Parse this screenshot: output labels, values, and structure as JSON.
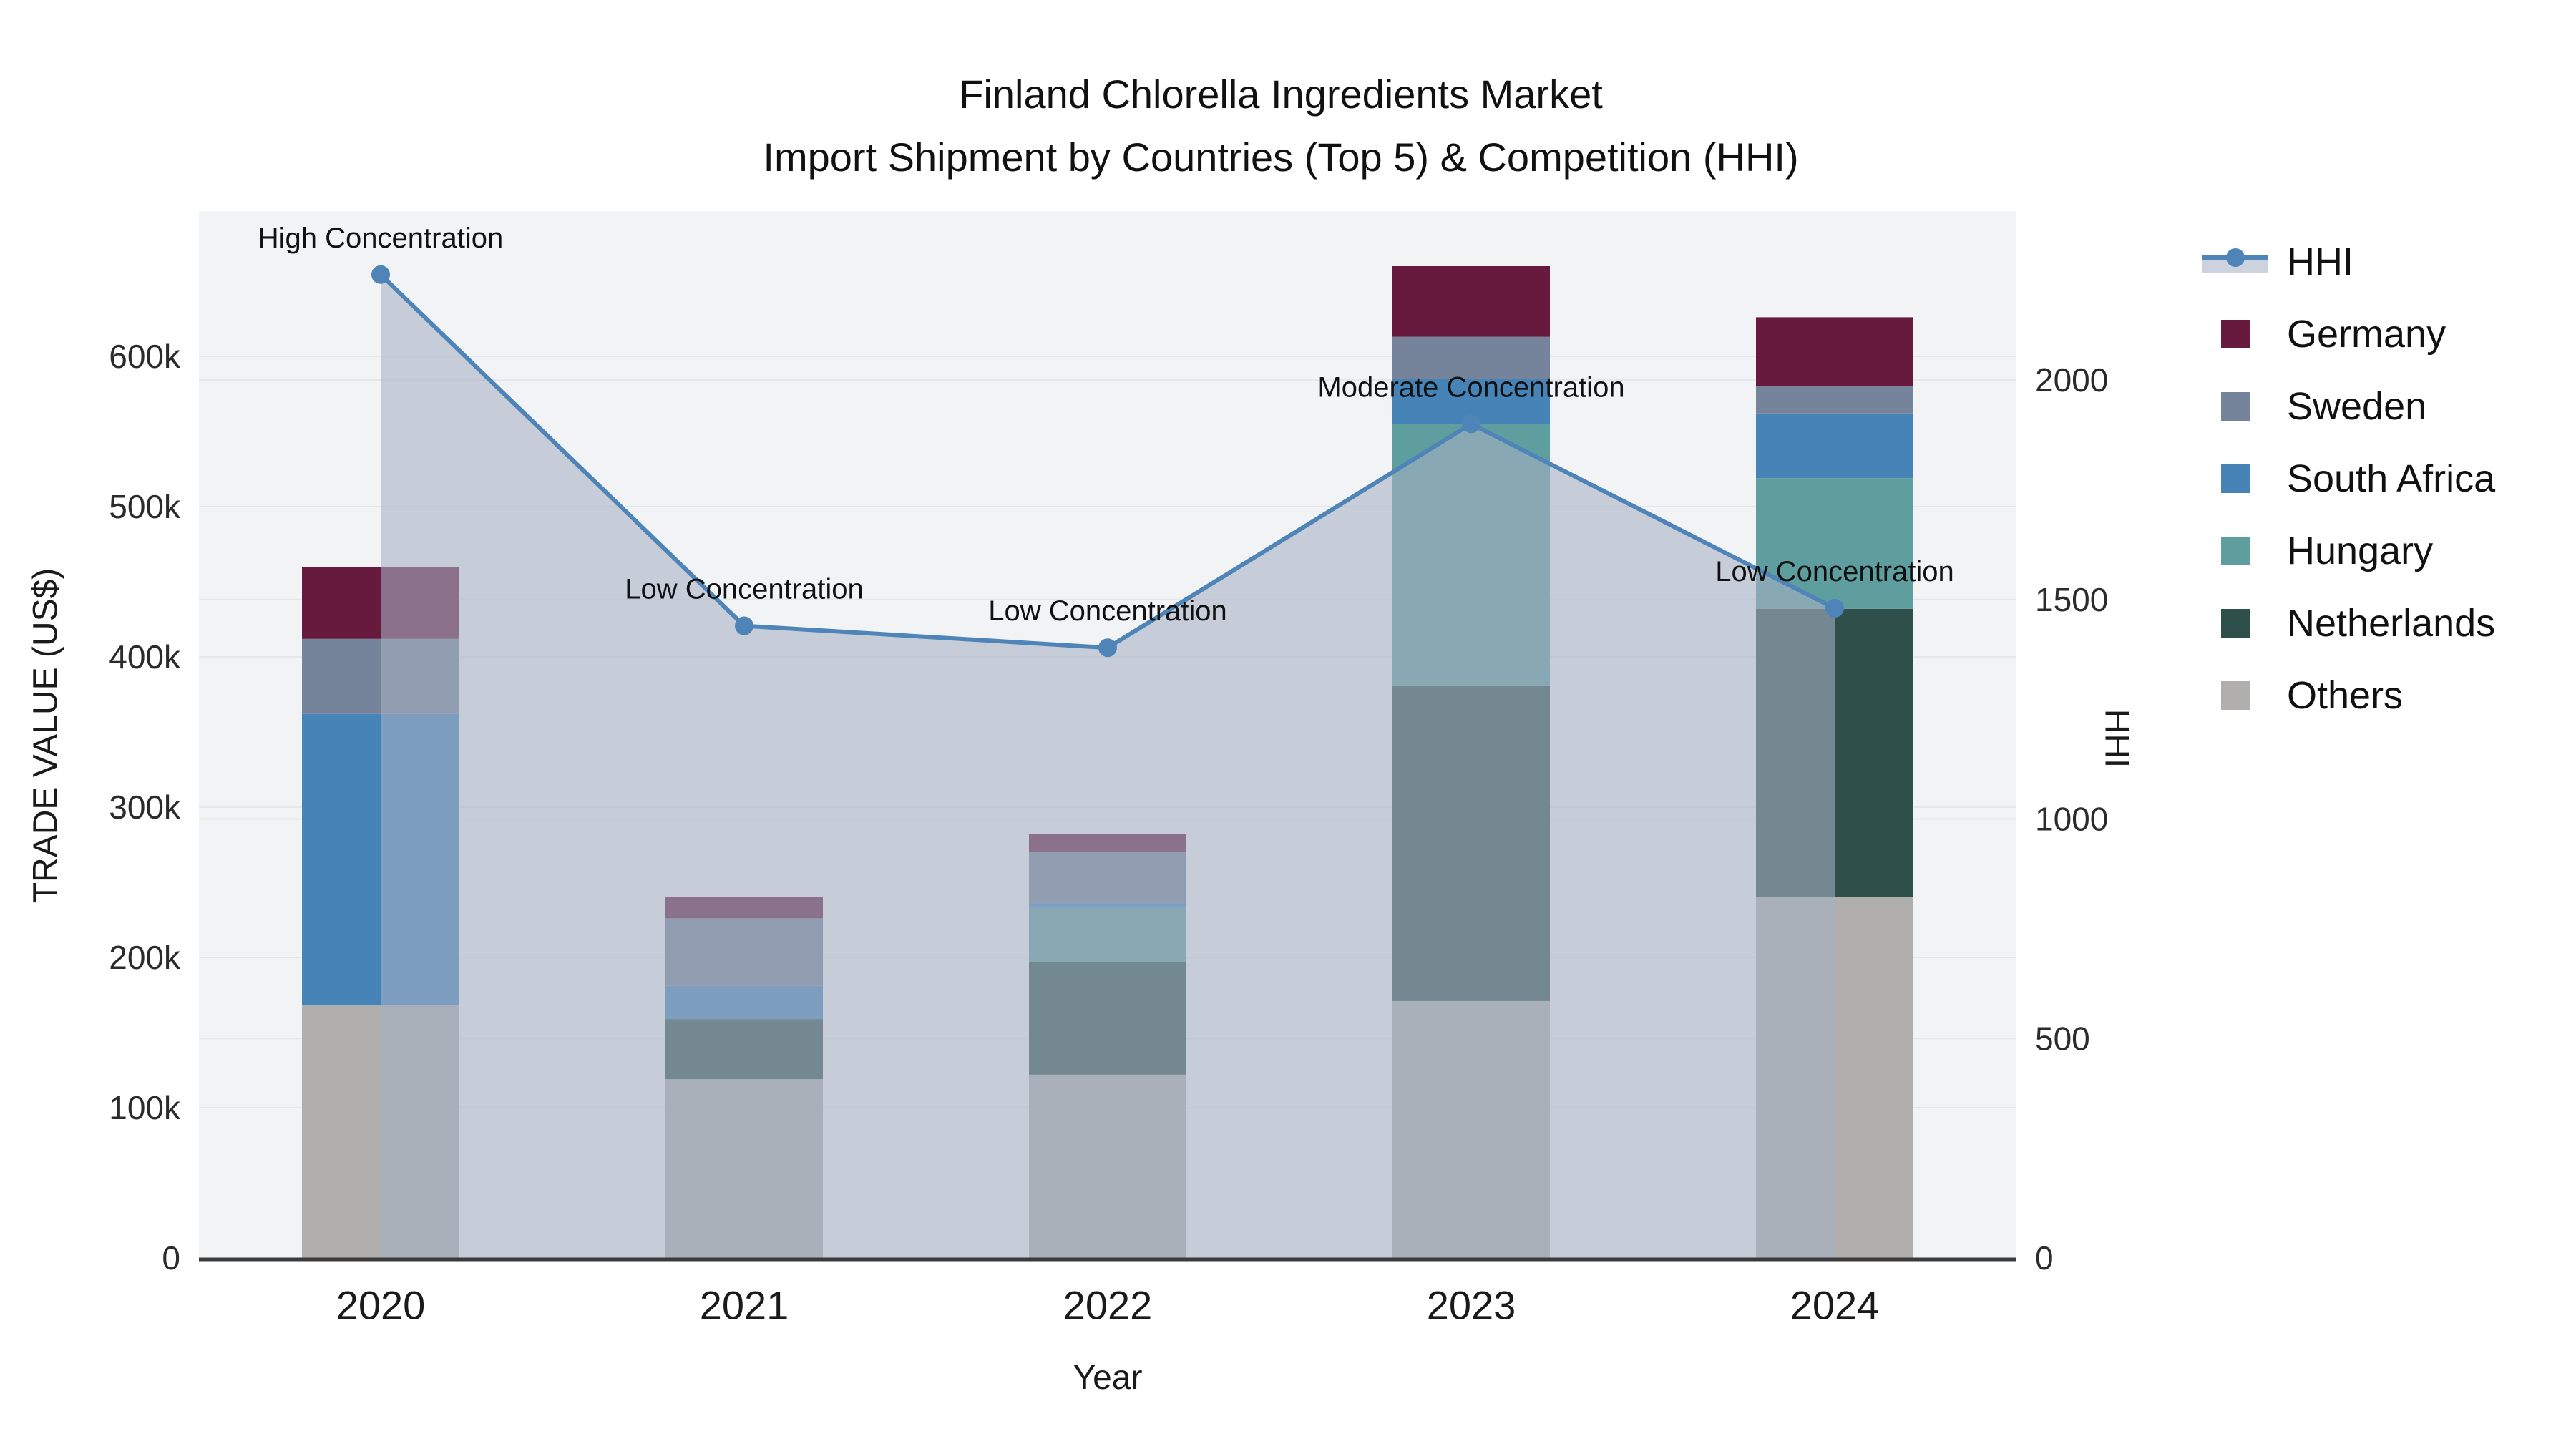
{
  "title": {
    "line1": "Finland Chlorella Ingredients Market",
    "line2": "Import Shipment by Countries (Top 5) & Competition (HHI)"
  },
  "axes": {
    "x": {
      "title": "Year"
    },
    "left": {
      "title": "TRADE VALUE (US$)"
    },
    "right": {
      "title": "HHI"
    }
  },
  "legend": {
    "items": [
      {
        "label": "HHI",
        "type": "line",
        "color": "#4e84b8"
      },
      {
        "label": "Germany",
        "type": "swatch",
        "color": "#671a3d"
      },
      {
        "label": "Sweden",
        "type": "swatch",
        "color": "#75849a"
      },
      {
        "label": "South Africa",
        "type": "swatch",
        "color": "#4684b8"
      },
      {
        "label": "Hungary",
        "type": "swatch",
        "color": "#5f9e9e"
      },
      {
        "label": "Netherlands",
        "type": "swatch",
        "color": "#2e4f4a"
      },
      {
        "label": "Others",
        "type": "swatch",
        "color": "#b0afad"
      }
    ]
  },
  "colors": {
    "hhi_line": "#4e84b8",
    "area_fill": "rgba(165,177,197,0.58)",
    "plot_bg": "#f2f3f4",
    "grid": "#e6e7ea",
    "baseline": "#3b3b3b",
    "annotation_text": "#111111",
    "tick_text": "#2b2b2b"
  },
  "chart_data": {
    "type": "bar+line",
    "title": "Finland Chlorella Ingredients Market — Import Shipment by Countries (Top 5) & Competition (HHI)",
    "categories": [
      "2020",
      "2021",
      "2022",
      "2023",
      "2024"
    ],
    "bar_value_unit": "thousand US$",
    "stack_order_bottom_to_top": [
      "Others",
      "Netherlands",
      "Hungary",
      "South Africa",
      "Sweden",
      "Germany"
    ],
    "series": [
      {
        "name": "Germany",
        "color": "#671a3d",
        "values": [
          48,
          14,
          12,
          47,
          46
        ]
      },
      {
        "name": "Sweden",
        "color": "#75849a",
        "values": [
          50,
          45,
          34,
          28,
          18
        ]
      },
      {
        "name": "South Africa",
        "color": "#4684b8",
        "values": [
          194,
          22,
          3,
          30,
          43
        ]
      },
      {
        "name": "Hungary",
        "color": "#5f9e9e",
        "values": [
          0,
          0,
          36,
          174,
          87
        ]
      },
      {
        "name": "Netherlands",
        "color": "#2e4f4a",
        "values": [
          0,
          40,
          75,
          210,
          192
        ]
      },
      {
        "name": "Others",
        "color": "#b0afad",
        "values": [
          168,
          119,
          122,
          171,
          240
        ]
      }
    ],
    "bar_totals_k": [
      460,
      240,
      282,
      660,
      626
    ],
    "line_series": {
      "name": "HHI",
      "axis": "right",
      "values": [
        2240,
        1440,
        1390,
        1900,
        1480
      ],
      "area_fill": true
    },
    "annotations": [
      {
        "label": "High Concentration",
        "category": "2020"
      },
      {
        "label": "Low Concentration",
        "category": "2021"
      },
      {
        "label": "Low Concentration",
        "category": "2022"
      },
      {
        "label": "Moderate Concentration",
        "category": "2023"
      },
      {
        "label": "Low Concentration",
        "category": "2024"
      }
    ],
    "left_axis": {
      "title": "TRADE VALUE (US$)",
      "tick_labels": [
        "0",
        "100k",
        "200k",
        "300k",
        "400k",
        "500k",
        "600k"
      ],
      "tick_values_k": [
        0,
        100,
        200,
        300,
        400,
        500,
        600
      ],
      "range_k": [
        0,
        700
      ]
    },
    "right_axis": {
      "title": "HHI",
      "tick_labels": [
        "0",
        "500",
        "1000",
        "1500",
        "2000"
      ],
      "tick_values": [
        0,
        500,
        1000,
        1500,
        2000
      ],
      "range": [
        0,
        2390
      ]
    },
    "x_axis": {
      "title": "Year"
    },
    "legend_position": "right",
    "grid": true
  }
}
